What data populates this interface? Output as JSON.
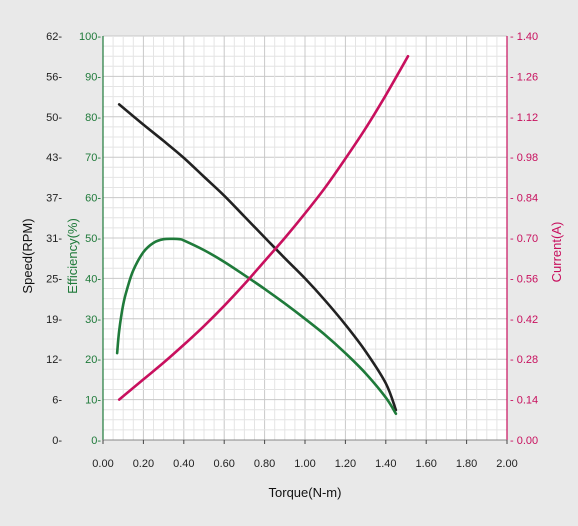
{
  "chart_data": {
    "type": "line",
    "grid": true,
    "x_axis": {
      "label": "Torque(N-m)",
      "range": [
        0,
        2.0
      ],
      "ticks": [
        "0.00",
        "0.20",
        "0.40",
        "0.60",
        "0.80",
        "1.00",
        "1.20",
        "1.40",
        "1.60",
        "1.80",
        "2.00"
      ]
    },
    "y_axes": [
      {
        "id": "speed",
        "label": "Speed(RPM)",
        "side": "left-outer",
        "range": [
          0,
          62
        ],
        "ticks": [
          "0",
          "6",
          "12",
          "19",
          "25",
          "31",
          "37",
          "43",
          "50",
          "56",
          "62"
        ],
        "color": "#111111"
      },
      {
        "id": "efficiency",
        "label": "Efficiency(%)",
        "side": "left-inner",
        "range": [
          0,
          100
        ],
        "ticks": [
          "0",
          "10",
          "20",
          "30",
          "40",
          "50",
          "60",
          "70",
          "80",
          "90",
          "100"
        ],
        "color": "#1f7a3a"
      },
      {
        "id": "current",
        "label": "Current(A)",
        "side": "right",
        "range": [
          0,
          1.4
        ],
        "ticks": [
          "0.00",
          "0.14",
          "0.28",
          "0.42",
          "0.56",
          "0.70",
          "0.84",
          "0.98",
          "1.12",
          "1.26",
          "1.40"
        ],
        "color": "#c8105e"
      }
    ],
    "series": [
      {
        "axis": "speed",
        "color": "#222222",
        "x": [
          0.08,
          0.2,
          0.3,
          0.4,
          0.5,
          0.6,
          0.7,
          0.8,
          0.9,
          1.0,
          1.1,
          1.2,
          1.3,
          1.4,
          1.45
        ],
        "y": [
          51.5,
          48.4,
          45.9,
          43.3,
          40.4,
          37.5,
          34.3,
          31.1,
          27.9,
          24.8,
          21.4,
          17.7,
          13.6,
          8.7,
          4.6
        ]
      },
      {
        "axis": "efficiency",
        "color": "#1f7a3a",
        "x": [
          0.07,
          0.08,
          0.1,
          0.12,
          0.15,
          0.2,
          0.25,
          0.3,
          0.35,
          0.38,
          0.4,
          0.5,
          0.6,
          0.7,
          0.8,
          0.9,
          1.0,
          1.1,
          1.2,
          1.3,
          1.4,
          1.45
        ],
        "y": [
          21.5,
          27,
          33.5,
          37.5,
          42,
          46.5,
          48.8,
          49.7,
          49.8,
          49.7,
          49.4,
          47,
          44.1,
          40.8,
          37.4,
          33.8,
          30,
          26,
          21.5,
          16.5,
          10.5,
          6.5
        ]
      },
      {
        "axis": "current",
        "color": "#c8105e",
        "x": [
          0.08,
          0.2,
          0.3,
          0.4,
          0.5,
          0.6,
          0.7,
          0.8,
          0.9,
          1.0,
          1.1,
          1.2,
          1.3,
          1.4,
          1.51
        ],
        "y": [
          0.14,
          0.21,
          0.268,
          0.33,
          0.395,
          0.465,
          0.54,
          0.62,
          0.7,
          0.785,
          0.875,
          0.975,
          1.08,
          1.195,
          1.33
        ]
      }
    ]
  }
}
